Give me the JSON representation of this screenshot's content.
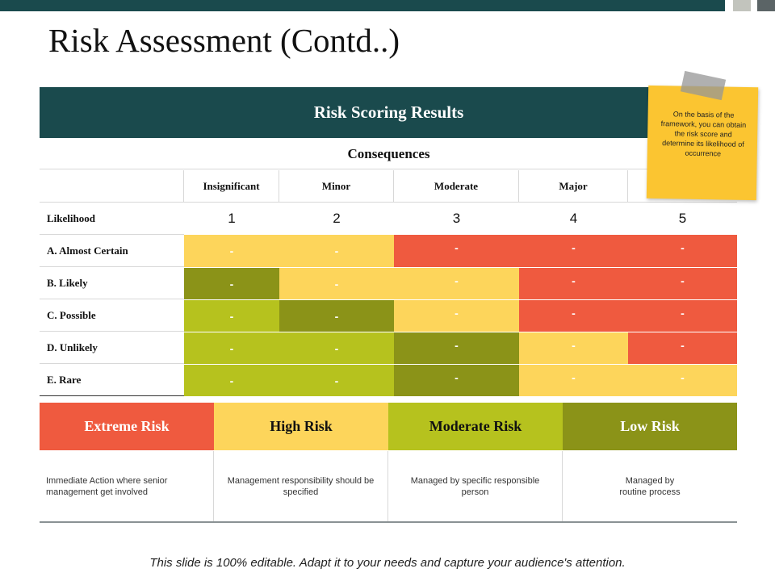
{
  "slide": {
    "title": "Risk Assessment (Contd..)",
    "footer": "This slide is 100% editable. Adapt it to your needs and capture your audience's attention."
  },
  "table": {
    "banner": "Risk Scoring Results",
    "consequences_label": "Consequences",
    "columns": [
      "Insignificant",
      "Minor",
      "Moderate",
      "Major",
      ""
    ],
    "likelihood_label": "Likelihood",
    "scores": [
      "1",
      "2",
      "3",
      "4",
      "5"
    ],
    "rows": [
      {
        "label": "A. Almost Certain",
        "cells": [
          "-",
          "-",
          "-",
          "-",
          "-"
        ],
        "levels": [
          "high",
          "high",
          "extreme",
          "extreme",
          "extreme"
        ]
      },
      {
        "label": "B. Likely",
        "cells": [
          "-",
          "-",
          "-",
          "-",
          "-"
        ],
        "levels": [
          "low",
          "high",
          "high",
          "extreme",
          "extreme"
        ]
      },
      {
        "label": "C. Possible",
        "cells": [
          "-",
          "-",
          "-",
          "-",
          "-"
        ],
        "levels": [
          "moderate",
          "low",
          "high",
          "extreme",
          "extreme"
        ]
      },
      {
        "label": "D. Unlikely",
        "cells": [
          "-",
          "-",
          "-",
          "-",
          "-"
        ],
        "levels": [
          "moderate",
          "moderate",
          "low",
          "high",
          "extreme"
        ]
      },
      {
        "label": "E. Rare",
        "cells": [
          "-",
          "-",
          "-",
          "-",
          "-"
        ],
        "levels": [
          "moderate",
          "moderate",
          "low",
          "high",
          "high"
        ]
      }
    ]
  },
  "legend": [
    {
      "label": "Extreme Risk",
      "level": "extreme",
      "description": "Immediate Action where senior management get involved"
    },
    {
      "label": "High Risk",
      "level": "high",
      "description": "Management responsibility should be specified"
    },
    {
      "label": "Moderate Risk",
      "level": "moderate",
      "description": "Managed by specific responsible person"
    },
    {
      "label": "Low Risk",
      "level": "low",
      "description": "Managed by routine process"
    }
  ],
  "sticky_note": {
    "text": "On the basis of the framework, you can obtain the risk score and determine its likelihood of occurrence"
  },
  "colors": {
    "extreme": "#ef5a3f",
    "high": "#fdd55b",
    "moderate": "#b6c21e",
    "low": "#8b9318",
    "header_dark": "#1a4a4d",
    "note": "#fbc531"
  }
}
